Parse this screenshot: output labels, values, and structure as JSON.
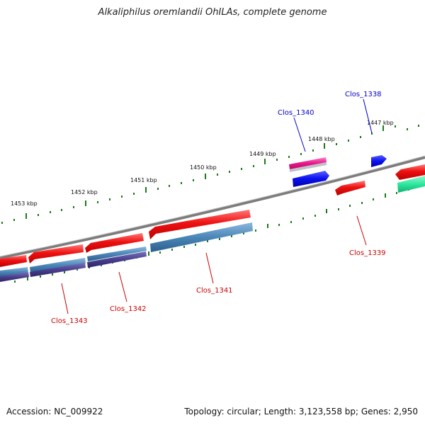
{
  "title": "Alkaliphilus oremlandii OhILAs, complete genome",
  "footer": {
    "accession": "Accession: NC_009922",
    "summary": "Topology: circular; Length: 3,123,558 bp; Genes: 2,950"
  },
  "ruler_labels": [
    "1447 kbp",
    "1448 kbp",
    "1449 kbp",
    "1450 kbp",
    "1451 kbp",
    "1452 kbp",
    "1453 kbp"
  ],
  "gene_labels": [
    "Clos_1338",
    "Clos_1340",
    "Clos_1339",
    "Clos_1341",
    "Clos_1342",
    "Clos_1343"
  ],
  "colors": {
    "forward_label": "#0000cc",
    "reverse_label": "#cc0000",
    "cds": "#ee1111",
    "blue_gene": "#0a10ee",
    "magenta_gene": "#e8178c",
    "teal_band": "#4a86b8",
    "purple_band": "#4a3f8e",
    "green_band": "#2ee8a0",
    "backbone": "#8a8a8a",
    "ruler": "#1a7a1a"
  }
}
